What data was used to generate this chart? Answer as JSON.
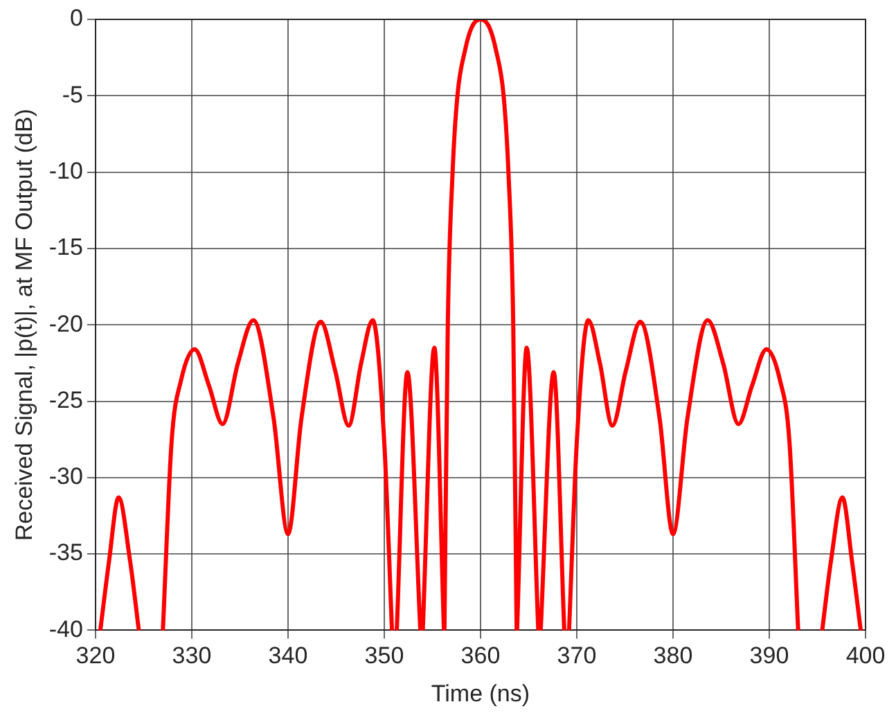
{
  "chart_data": {
    "type": "line",
    "xlabel": "Time (ns)",
    "ylabel": "Received Signal, |p(t)|, at MF Output (dB)",
    "x": [
      320.5,
      321.4,
      322.4,
      323.6,
      324.5,
      325.7,
      327.0,
      327.9,
      328.9,
      330.3,
      331.8,
      333.2,
      334.8,
      336.4,
      338.5,
      340.0,
      341.4,
      343.4,
      344.9,
      346.3,
      347.6,
      348.8,
      350.0,
      350.8,
      351.05,
      351.3,
      352.4,
      353.75,
      353.9,
      354.0,
      355.2,
      356.2,
      356.22,
      356.25,
      356.6,
      357.1,
      357.6,
      358.4,
      359.1,
      360.0,
      360.9,
      361.6,
      362.4,
      362.9,
      363.4,
      363.75,
      363.78,
      363.8,
      364.8,
      366.0,
      366.1,
      366.25,
      367.6,
      368.7,
      368.95,
      369.2,
      370.0,
      371.2,
      372.4,
      373.7,
      375.1,
      376.6,
      378.6,
      380.0,
      381.5,
      383.6,
      385.2,
      386.8,
      388.2,
      389.7,
      391.1,
      392.1,
      393.0,
      394.3,
      395.5,
      396.4,
      397.6,
      398.6,
      399.5
    ],
    "series": [
      {
        "color": "#ff0000",
        "values": [
          -40,
          -35.5,
          -31.3,
          -35.5,
          -40,
          null,
          -40,
          -27.7,
          -23.6,
          -21.6,
          -24.0,
          -26.5,
          -22.5,
          -19.7,
          -26.1,
          -33.7,
          -26.1,
          -19.8,
          -23.0,
          -26.6,
          -22.5,
          -19.7,
          -27.7,
          -40,
          null,
          -40,
          -23.1,
          -40,
          null,
          -40,
          -21.5,
          -40,
          null,
          -40,
          -20,
          -10,
          -5,
          -2,
          -0.5,
          0,
          -0.5,
          -2,
          -5,
          -10,
          -20,
          -40,
          null,
          -40,
          -21.5,
          -40,
          null,
          -40,
          -23.1,
          -40,
          null,
          -40,
          -27.7,
          -19.7,
          -22.5,
          -26.6,
          -23.0,
          -19.8,
          -26.1,
          -33.7,
          -26.1,
          -19.7,
          -22.5,
          -26.5,
          -24.0,
          -21.6,
          -23.6,
          -27.7,
          -40,
          null,
          -40,
          -35.5,
          -31.3,
          -35.5,
          -40
        ]
      }
    ],
    "xlim": [
      320,
      400
    ],
    "xticks": [
      320,
      330,
      340,
      350,
      360,
      370,
      380,
      390,
      400
    ],
    "ylim": [
      -40,
      0
    ],
    "yticks": [
      -40,
      -35,
      -30,
      -25,
      -20,
      -15,
      -10,
      -5,
      0
    ],
    "grid": true,
    "legend": false,
    "marker": "none",
    "line_style": "solid"
  }
}
